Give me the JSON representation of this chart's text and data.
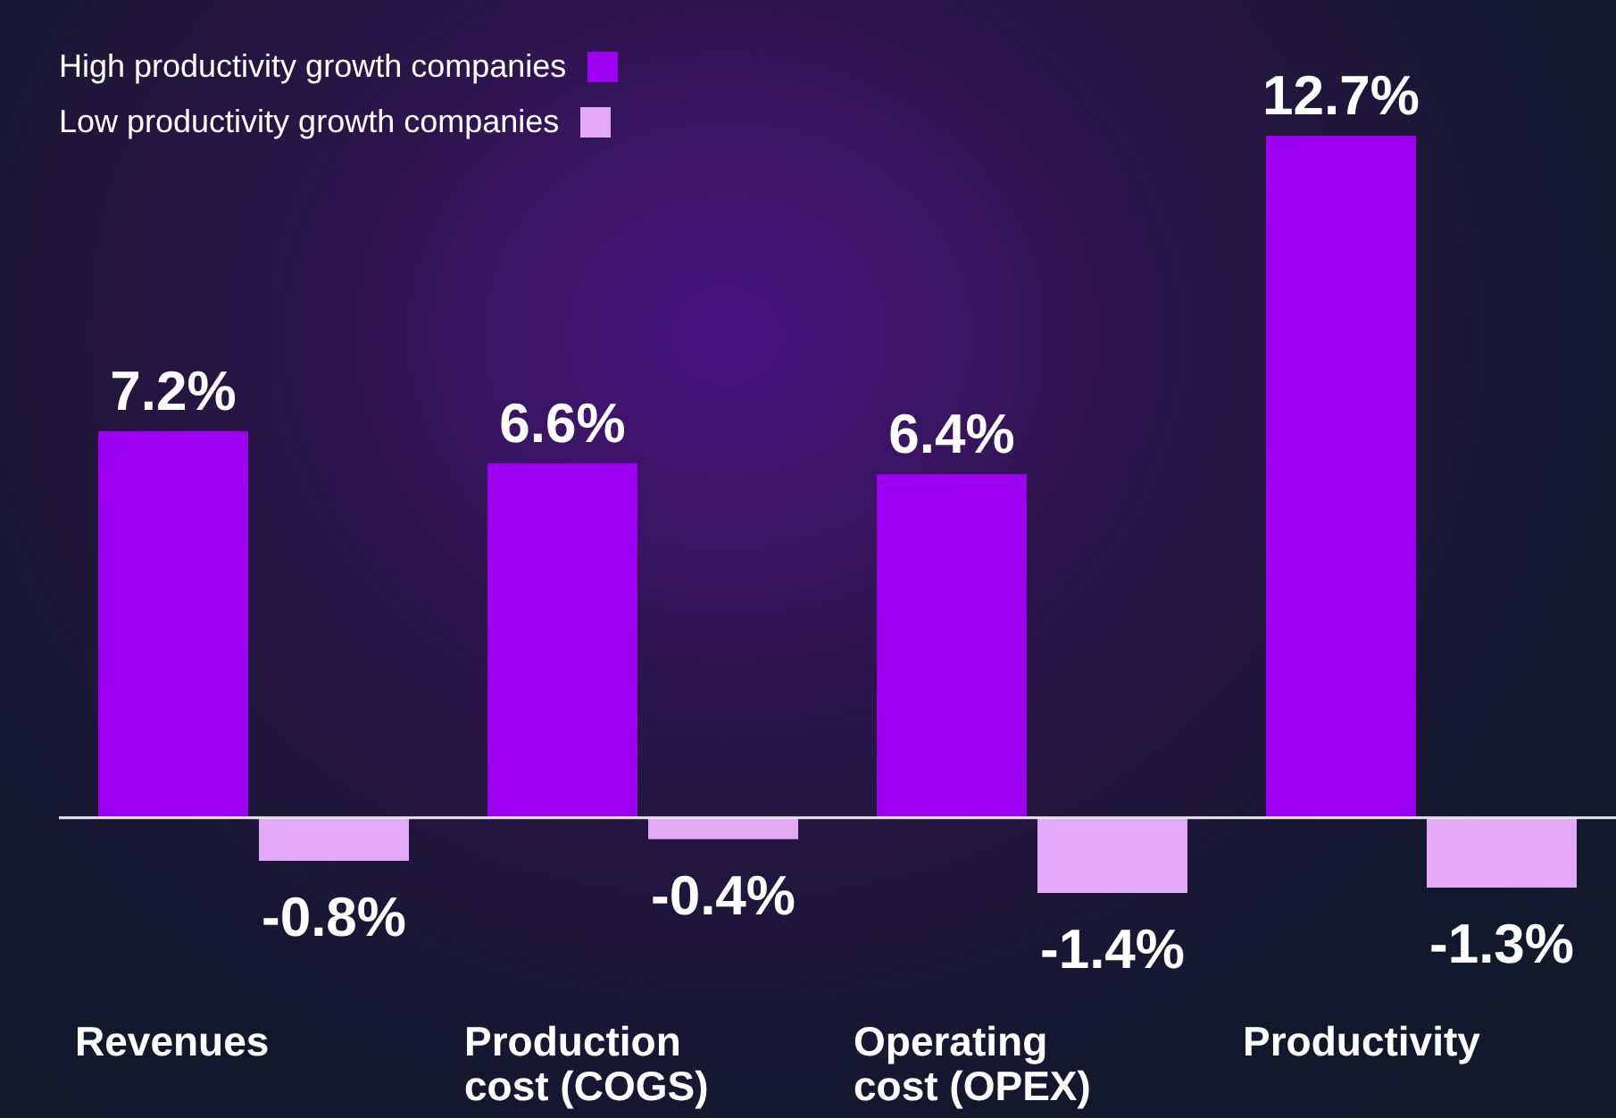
{
  "chart_data": {
    "type": "bar",
    "categories": [
      "Revenues",
      "Production cost (COGS)",
      "Operating cost (OPEX)",
      "Productivity"
    ],
    "series": [
      {
        "name": "High productivity growth companies",
        "color": "#9d00f0",
        "values": [
          7.2,
          6.6,
          6.4,
          12.7
        ],
        "value_labels": [
          "7.2%",
          "6.6%",
          "6.4%",
          "12.7%"
        ]
      },
      {
        "name": "Low productivity growth companies",
        "color": "#e3a9f7",
        "values": [
          -0.8,
          -0.4,
          -1.4,
          -1.3
        ],
        "value_labels": [
          "-0.8%",
          "-0.4%",
          "-1.4%",
          "-1.3%"
        ]
      }
    ],
    "legend": "top left",
    "grid": false
  }
}
